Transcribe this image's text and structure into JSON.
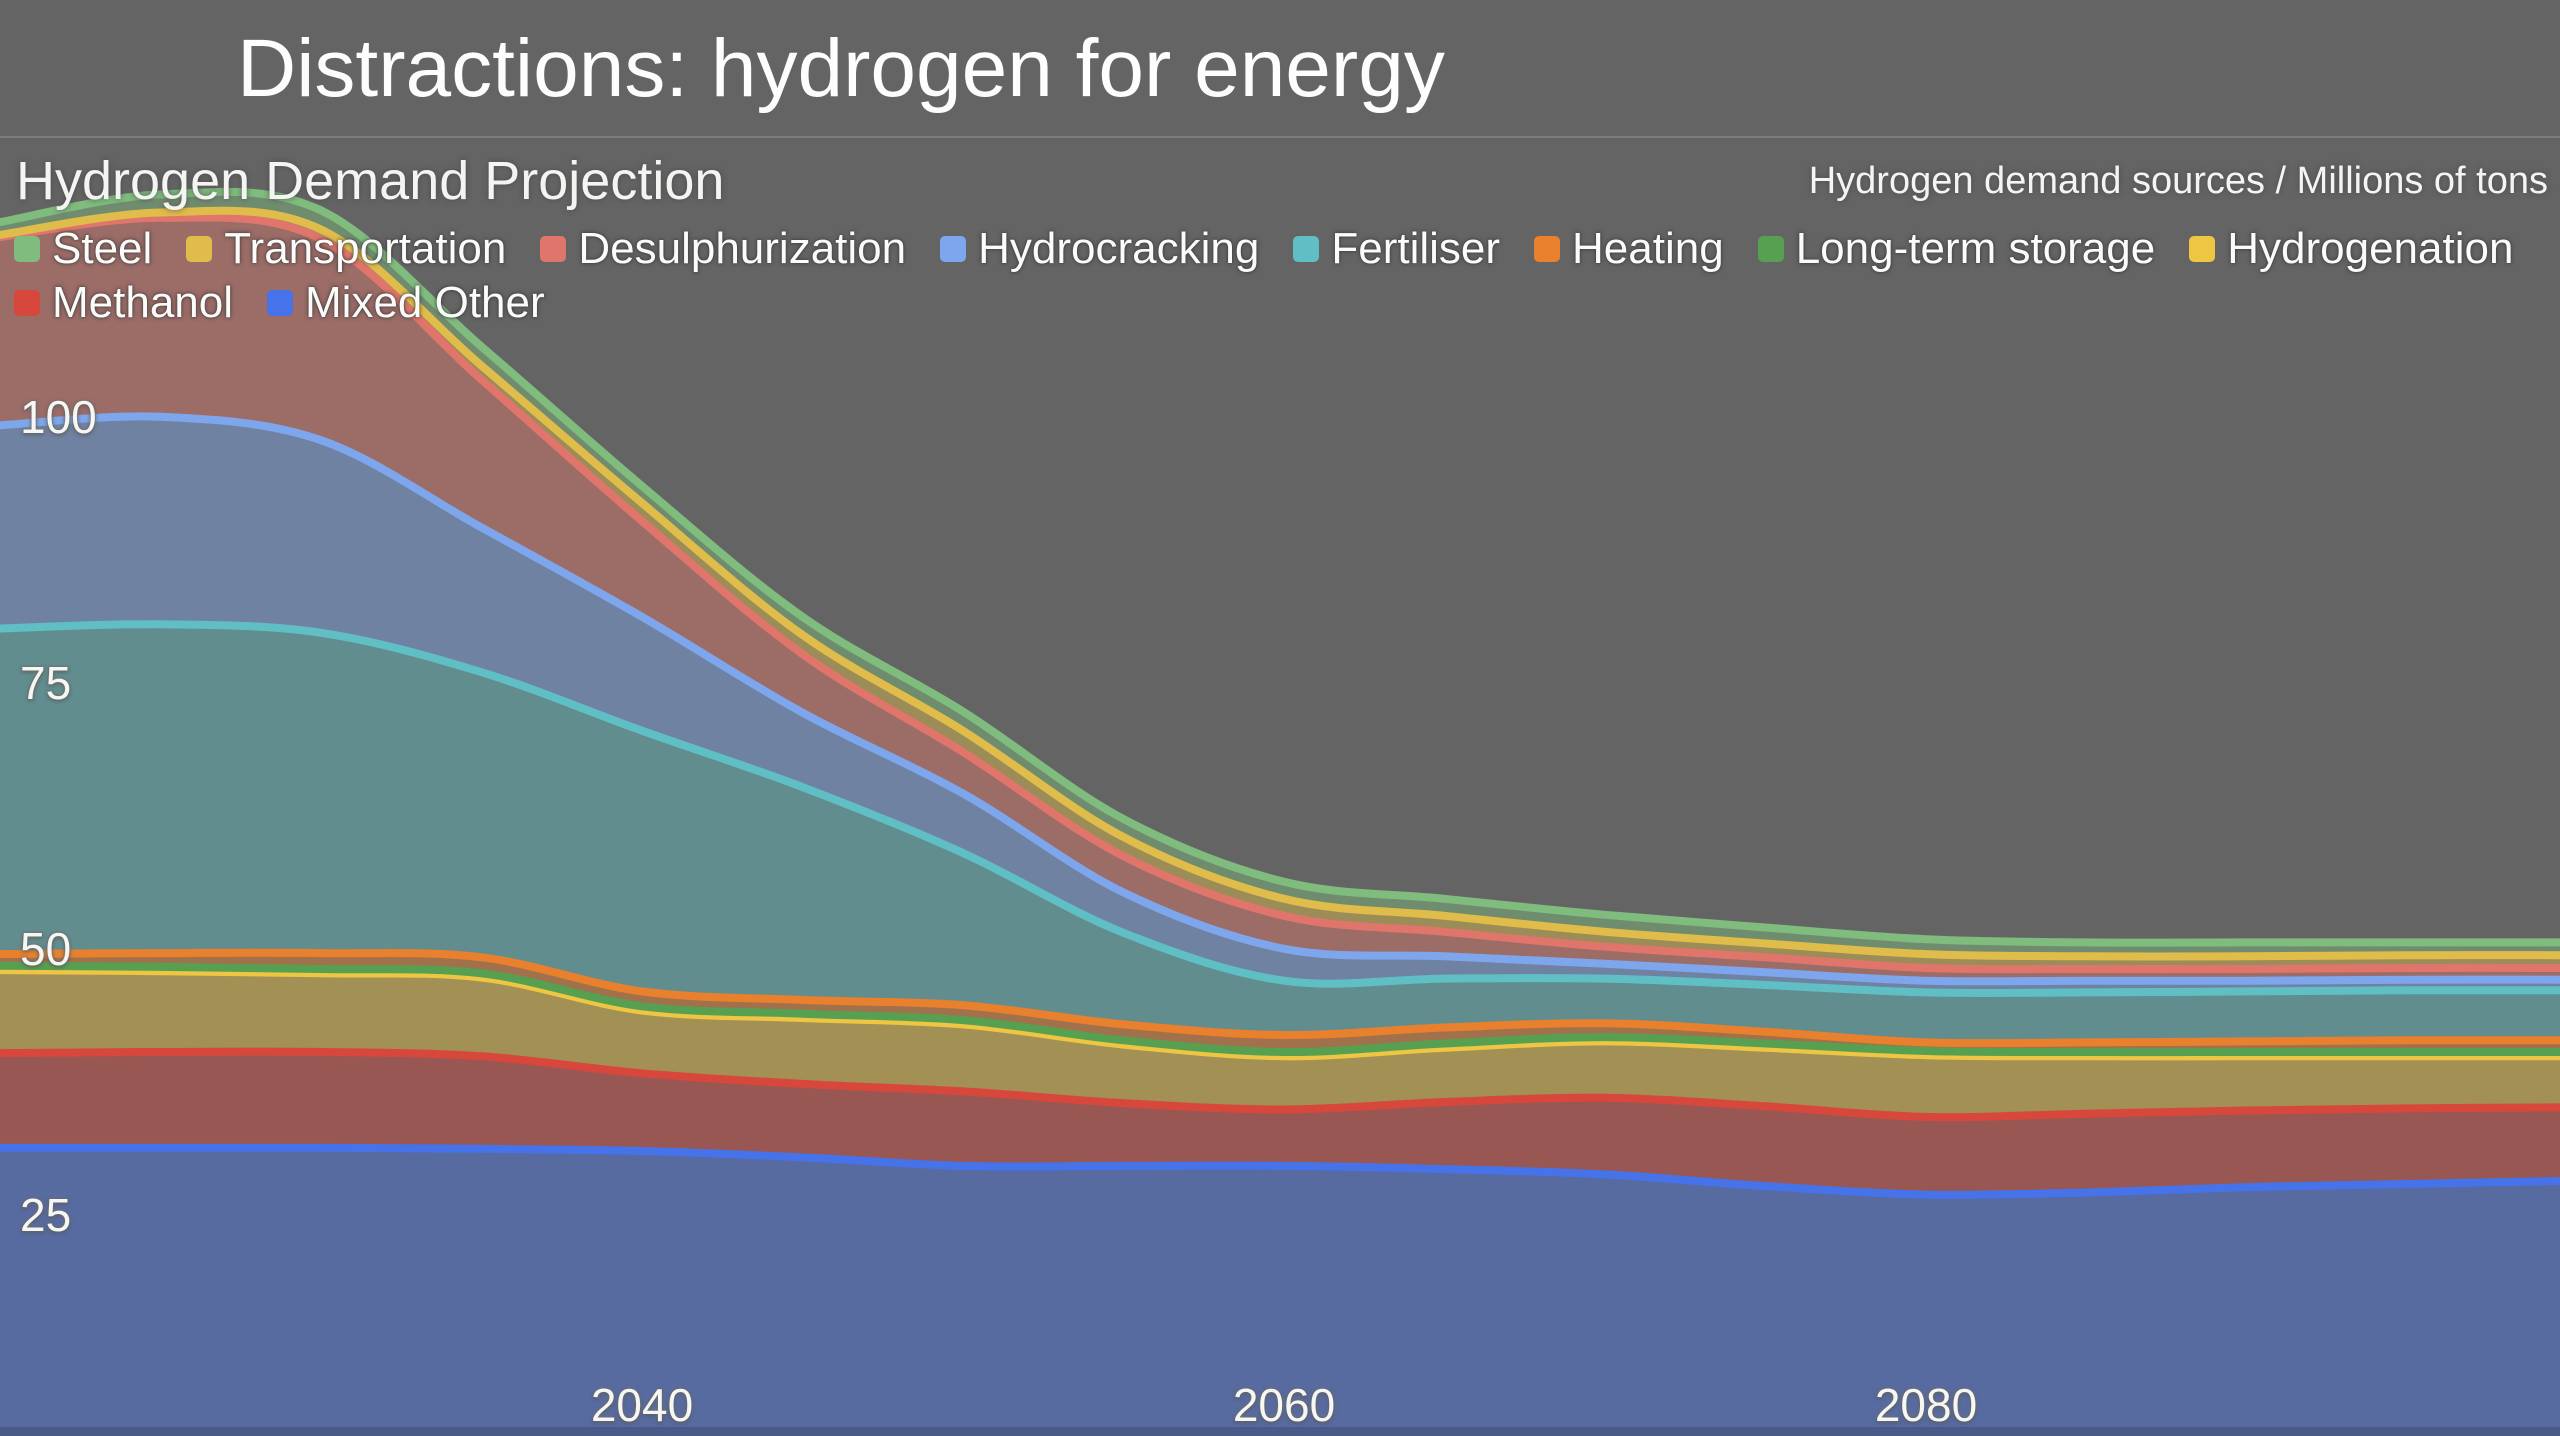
{
  "page": {
    "title": "Distractions: hydrogen for energy"
  },
  "chart_header": {
    "title": "Hydrogen Demand Projection",
    "units_label": "Hydrogen demand sources / Millions of tons"
  },
  "colors": {
    "background": "#646464",
    "divider": "#7c7c7c",
    "fill_alpha": 0.45
  },
  "chart_data": {
    "type": "area",
    "stacked": true,
    "title": "Hydrogen Demand Projection",
    "ylabel": "Millions of tons",
    "xlabel": "Year",
    "x_domain": [
      2020,
      2100
    ],
    "y_domain": [
      0,
      135
    ],
    "x_ticks": [
      2040,
      2060,
      2080
    ],
    "y_ticks": [
      25,
      50,
      75,
      100
    ],
    "legend_position": "top-left",
    "grid": false,
    "x": [
      2020,
      2025,
      2030,
      2035,
      2040,
      2045,
      2050,
      2055,
      2060,
      2065,
      2070,
      2075,
      2080,
      2085,
      2090,
      2095,
      2100
    ],
    "series": [
      {
        "name": "Steel",
        "color": "#7fbc7d",
        "legend_row": 1,
        "values": [
          1.2,
          1.7,
          1.8,
          1.8,
          1.6,
          1.7,
          1.8,
          1.7,
          1.6,
          1.6,
          1.6,
          1.5,
          1.4,
          1.3,
          1.3,
          1.2,
          1.2
        ]
      },
      {
        "name": "Transportation",
        "color": "#e0bc4a",
        "legend_row": 1,
        "values": [
          0.2,
          0.5,
          0.9,
          1.3,
          1.7,
          1.8,
          2.0,
          1.8,
          1.6,
          1.5,
          1.4,
          1.3,
          1.3,
          1.2,
          1.2,
          1.2,
          1.2
        ]
      },
      {
        "name": "Desulphurization",
        "color": "#e0756b",
        "legend_row": 1,
        "values": [
          17.7,
          18.7,
          18.9,
          13.9,
          9.0,
          5.5,
          3.9,
          3.4,
          3.1,
          2.3,
          1.6,
          1.4,
          1.2,
          1.1,
          1.1,
          1.1,
          1.1
        ]
      },
      {
        "name": "Hydrocracking",
        "color": "#7ea6ec",
        "legend_row": 1,
        "values": [
          19.1,
          19.5,
          18.1,
          13.6,
          10.7,
          7.0,
          5.6,
          3.8,
          3.0,
          2.1,
          1.4,
          1.2,
          1.1,
          1.1,
          1.0,
          1.0,
          1.0
        ]
      },
      {
        "name": "Fertiliser",
        "color": "#5fbfc4",
        "legend_row": 1,
        "values": [
          30.6,
          30.9,
          30.1,
          26.8,
          24.5,
          20.0,
          14.3,
          8.6,
          5.1,
          4.6,
          4.2,
          4.4,
          4.7,
          4.7,
          4.7,
          4.7,
          4.7
        ]
      },
      {
        "name": "Heating",
        "color": "#e8802d",
        "legend_row": 1,
        "values": [
          1.1,
          1.3,
          1.5,
          1.5,
          1.4,
          1.3,
          1.4,
          1.5,
          1.6,
          1.5,
          1.3,
          1.1,
          0.8,
          0.9,
          1.0,
          1.1,
          1.1
        ]
      },
      {
        "name": "Long-term storage",
        "color": "#57a052",
        "legend_row": 1,
        "values": [
          0.4,
          0.4,
          0.4,
          0.4,
          0.4,
          0.4,
          0.4,
          0.4,
          0.4,
          0.4,
          0.4,
          0.4,
          0.4,
          0.4,
          0.4,
          0.4,
          0.4
        ]
      },
      {
        "name": "Hydrogenation",
        "color": "#eec643",
        "legend_row": 1,
        "values": [
          7.8,
          7.6,
          7.4,
          7.4,
          5.9,
          6.2,
          6.3,
          5.5,
          5.0,
          5.1,
          5.3,
          5.5,
          5.8,
          5.4,
          5.1,
          4.9,
          4.8
        ]
      },
      {
        "name": "Methanol",
        "color": "#d8473c",
        "legend_row": 2,
        "values": [
          8.9,
          9.0,
          9.0,
          8.7,
          7.3,
          6.9,
          7.0,
          5.9,
          5.3,
          6.3,
          7.2,
          7.5,
          7.3,
          7.4,
          7.2,
          7.1,
          6.9
        ]
      },
      {
        "name": "Mixed Other",
        "color": "#4673ea",
        "legend_row": 2,
        "values": [
          31.6,
          31.6,
          31.6,
          31.5,
          31.3,
          30.7,
          29.9,
          29.9,
          29.9,
          29.6,
          29.1,
          28.0,
          27.2,
          27.4,
          27.9,
          28.2,
          28.5
        ]
      }
    ]
  },
  "x_tick_labels": [
    "2040",
    "2060",
    "2080"
  ],
  "y_tick_labels": [
    "100",
    "75",
    "50",
    "25"
  ]
}
